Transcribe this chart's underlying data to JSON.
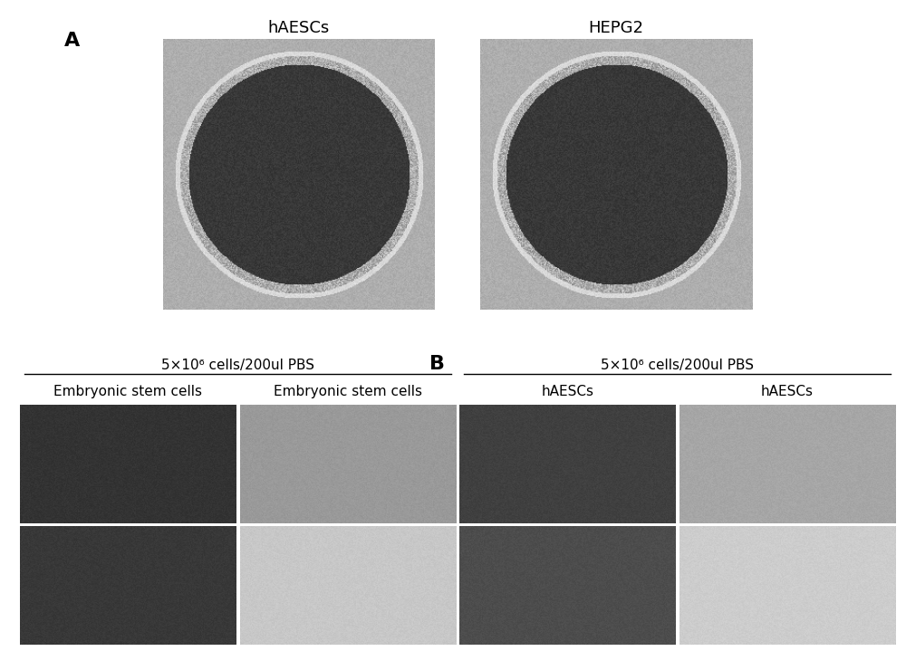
{
  "bg_color": "#ffffff",
  "panel_A_label": "A",
  "panel_B_label": "B",
  "top_left_title": "hAESCs",
  "top_right_title": "HEPG2",
  "pbs_label_left": "5×10⁶ cells/200ul PBS",
  "pbs_label_right": "5×10⁶ cells/200ul PBS",
  "col_labels": [
    "Embryonic stem cells",
    "Embryonic stem cells",
    "hAESCs",
    "hAESCs"
  ],
  "title_fontsize": 13,
  "col_label_fontsize": 11,
  "pbs_fontsize": 11,
  "panel_label_fontsize": 16,
  "img_gray_dark": 0.18,
  "img_gray_mid": 0.55,
  "img_gray_light": 0.82,
  "img_gray_white": 0.92
}
